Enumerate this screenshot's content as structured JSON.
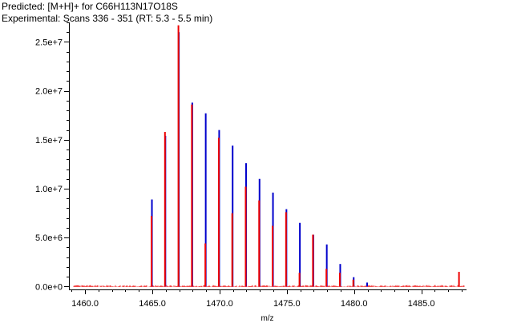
{
  "legend": {
    "predicted_label": "Predicted: [M+H]+ for C66H113N17O18S",
    "experimental_label": "Experimental: Scans 336 - 351 (RT:  5.3 -  5.5 min)"
  },
  "colors": {
    "predicted": "#0000cc",
    "experimental": "#ee0000",
    "axis": "#000000"
  },
  "chart_data": {
    "type": "bar",
    "xlabel": "m/z",
    "ylabel": "",
    "xlim": [
      1458.8,
      1488.3
    ],
    "ylim": [
      -300000,
      27000000
    ],
    "x_ticks": [
      {
        "value": 1460.0,
        "label": "1460.0"
      },
      {
        "value": 1465.0,
        "label": "1465.0"
      },
      {
        "value": 1470.0,
        "label": "1470.0"
      },
      {
        "value": 1475.0,
        "label": "1475.0"
      },
      {
        "value": 1480.0,
        "label": "1480.0"
      },
      {
        "value": 1485.0,
        "label": "1485.0"
      }
    ],
    "y_ticks": [
      {
        "value": 0,
        "label": "0.0e+0"
      },
      {
        "value": 5000000,
        "label": "5.0e+6"
      },
      {
        "value": 10000000,
        "label": "1.0e+7"
      },
      {
        "value": 15000000,
        "label": "1.5e+7"
      },
      {
        "value": 20000000,
        "label": "2.0e+7"
      },
      {
        "value": 25000000,
        "label": "2.5e+7"
      }
    ],
    "grid": false,
    "legend_position": "top-left",
    "series": [
      {
        "name": "Predicted: [M+H]+ for C66H113N17O18S",
        "x": [
          1464.97,
          1465.97,
          1466.97,
          1467.97,
          1468.97,
          1469.97,
          1470.97,
          1471.97,
          1472.97,
          1473.97,
          1474.97,
          1475.97,
          1476.97,
          1477.97,
          1478.97,
          1479.97,
          1480.97
        ],
        "values": [
          8900000,
          15400000,
          26000000,
          18800000,
          17700000,
          16000000,
          14400000,
          12600000,
          11000000,
          9600000,
          7900000,
          6500000,
          5300000,
          4300000,
          2300000,
          950000,
          400000
        ]
      },
      {
        "name": "Experimental: Scans 336 - 351 (RT:  5.3 -  5.5 min)",
        "x": [
          1464.94,
          1465.94,
          1466.94,
          1467.94,
          1468.94,
          1469.94,
          1470.94,
          1471.94,
          1472.94,
          1473.94,
          1474.94,
          1475.94,
          1476.94,
          1477.94,
          1478.94,
          1479.94,
          1487.8
        ],
        "values": [
          7200000,
          15800000,
          26700000,
          18600000,
          4400000,
          15200000,
          7500000,
          10200000,
          8800000,
          6200000,
          7600000,
          1400000,
          5300000,
          1800000,
          1400000,
          700000,
          1500000
        ]
      }
    ]
  }
}
